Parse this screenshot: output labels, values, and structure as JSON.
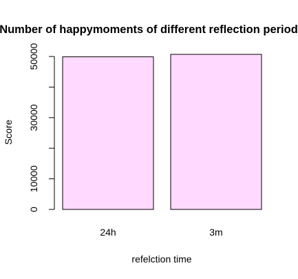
{
  "chart_data": {
    "type": "bar",
    "title": "Number of happymoments of different reflection period",
    "xlabel": "refelction time",
    "ylabel": "Score",
    "categories": [
      "24h",
      "3m"
    ],
    "values": [
      49900,
      50700
    ],
    "ylim": [
      0,
      50000
    ],
    "yticks": [
      0,
      10000,
      20000,
      30000,
      40000,
      50000
    ],
    "ytick_labels": [
      "0",
      "10000",
      "",
      "30000",
      "",
      "50000"
    ],
    "bar_color": "#ffd9ff",
    "bar_edge_color": "#000000",
    "grid": false,
    "legend": "none"
  }
}
